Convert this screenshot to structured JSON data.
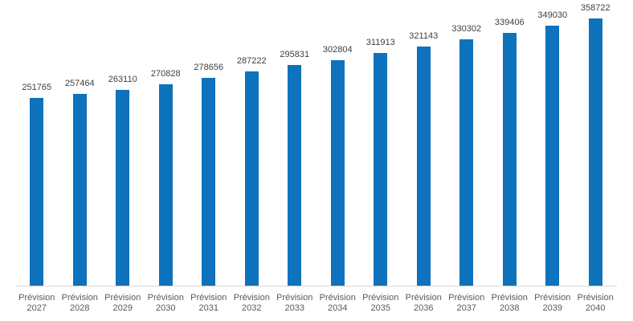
{
  "chart_data": {
    "type": "bar",
    "title": "",
    "categories": [
      "Prévision 2027",
      "Prévision 2028",
      "Prévision 2029",
      "Prévision 2030",
      "Prévision 2031",
      "Prévision 2032",
      "Prévision 2033",
      "Prévision 2034",
      "Prévision 2035",
      "Prévision 2036",
      "Prévision 2037",
      "Prévision 2038",
      "Prévision 2039",
      "Prévision 2040"
    ],
    "values": [
      251765,
      257464,
      263110,
      270828,
      278656,
      287222,
      295831,
      302804,
      311913,
      321143,
      330302,
      339406,
      349030,
      358722
    ],
    "data_labels": [
      251765,
      257464,
      263110,
      270828,
      278656,
      287222,
      295831,
      302804,
      311913,
      321143,
      330302,
      339406,
      349030,
      358722
    ],
    "xlabel": "",
    "ylabel": "",
    "ylim": [
      0,
      358722
    ],
    "grid": false,
    "legend": false,
    "value_axis_visible": false,
    "colors": {
      "bar": "#0E72BC",
      "value_label": "#404040",
      "category_label": "#595959",
      "axis_line": "#D9D9D9",
      "background": "#FFFFFF"
    }
  }
}
